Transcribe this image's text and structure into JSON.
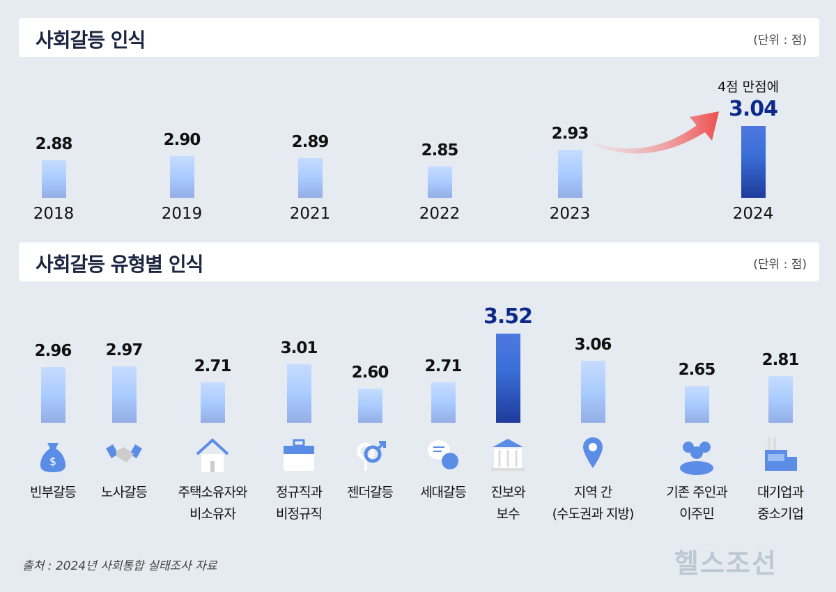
{
  "chart_data": [
    {
      "type": "bar",
      "title": "사회갈등 인식",
      "unit": "(단위 : 점)",
      "categories": [
        "2018",
        "2019",
        "2021",
        "2022",
        "2023",
        "2024"
      ],
      "values": [
        2.88,
        2.9,
        2.89,
        2.85,
        2.93,
        3.04
      ],
      "highlight": "2024",
      "annotation": "4점 만점에"
    },
    {
      "type": "bar",
      "title": "사회갈등 유형별 인식",
      "unit": "(단위 : 점)",
      "categories": [
        "빈부갈등",
        "노사갈등",
        "주택소유자와\n비소유자",
        "정규직과\n비정규직",
        "젠더갈등",
        "세대갈등",
        "진보와\n보수",
        "지역 간\n(수도권과 지방)",
        "기존 주인과\n이주민",
        "대기업과\n중소기업"
      ],
      "values": [
        2.96,
        2.97,
        2.71,
        3.01,
        2.6,
        2.71,
        3.52,
        3.06,
        2.65,
        2.81
      ],
      "icons": [
        "money-bag-icon",
        "handshake-icon",
        "house-icon",
        "briefcase-icon",
        "gender-icon",
        "chat-bubbles-icon",
        "government-building-icon",
        "location-pin-icon",
        "people-group-icon",
        "factory-icon"
      ],
      "highlight": "진보와\n보수"
    }
  ],
  "source": "출처 : 2024년 사회통합 실태조사 자료",
  "logo": "헬스조선",
  "colors": {
    "bar": "#a9ccff",
    "highlight": "#2a4fbf",
    "arrow": "#ee5a5a",
    "bg": "#e6ebf1"
  }
}
